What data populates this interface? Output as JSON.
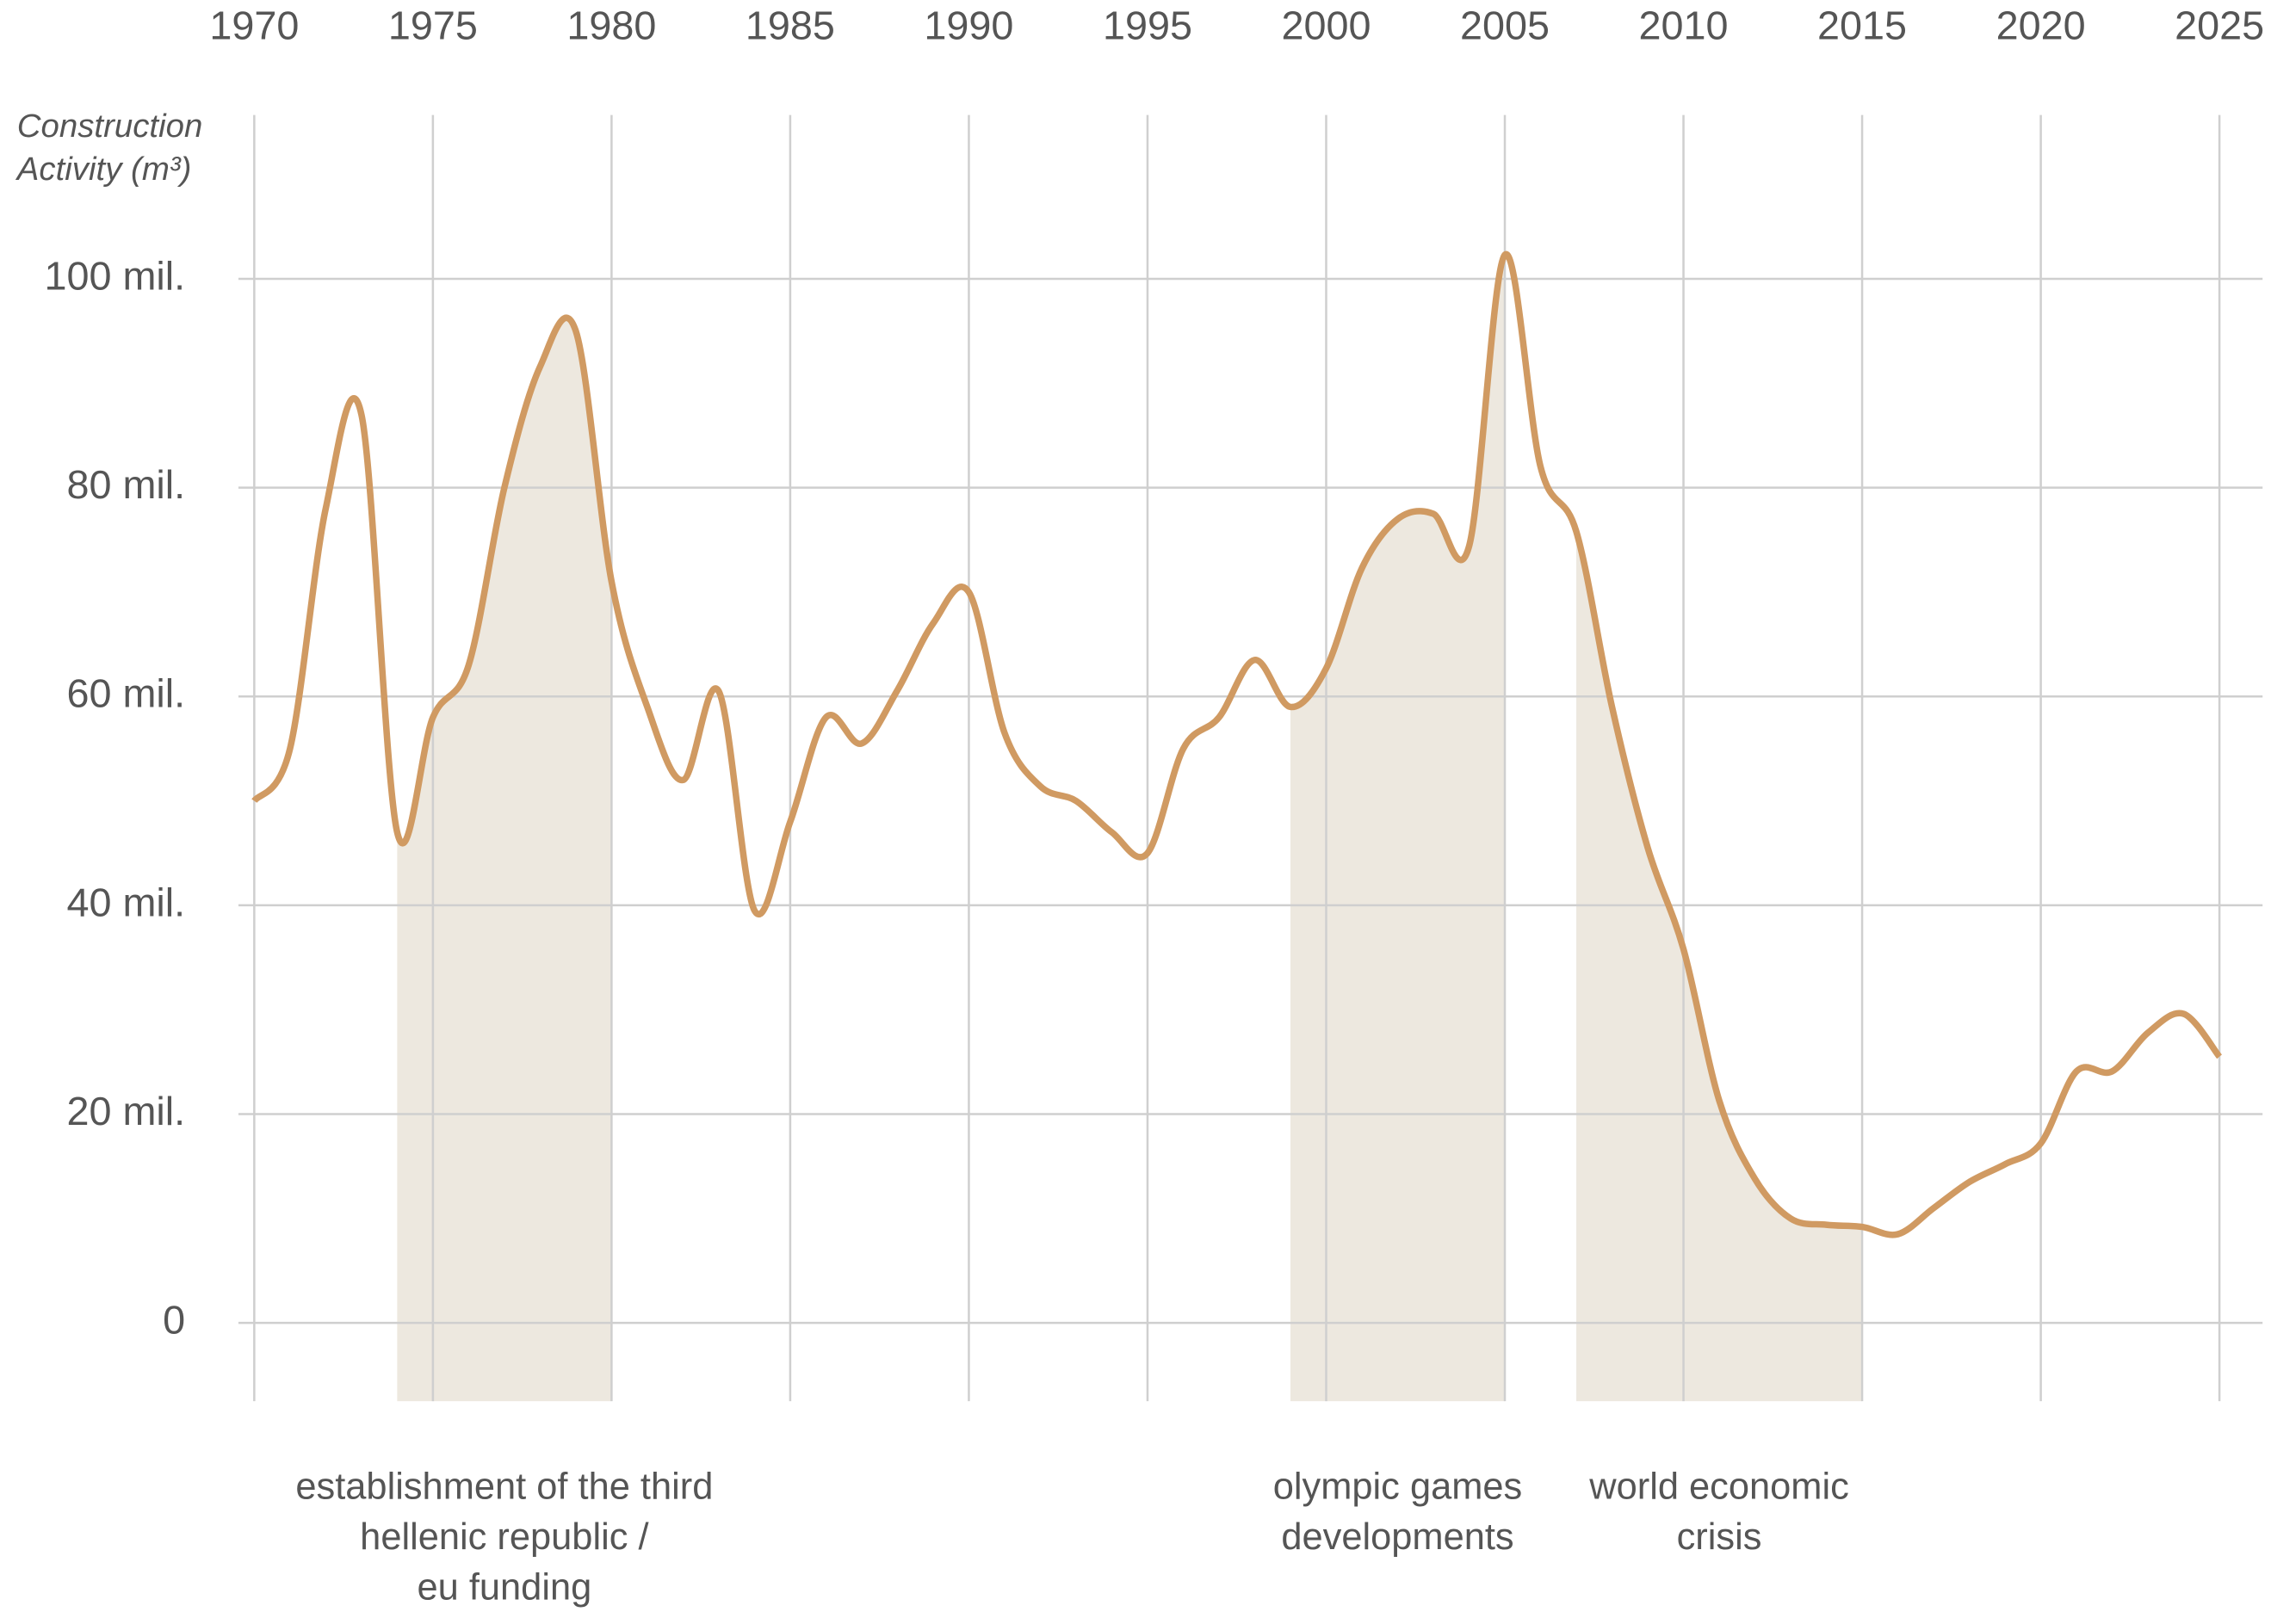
{
  "chart_data": {
    "type": "line",
    "y_axis_title": [
      "Construction",
      "Activity (m³)"
    ],
    "x": [
      1970,
      1971,
      1972,
      1973,
      1974,
      1975,
      1976,
      1977,
      1978,
      1979,
      1980,
      1981,
      1982,
      1983,
      1984,
      1985,
      1986,
      1987,
      1988,
      1989,
      1990,
      1991,
      1992,
      1993,
      1994,
      1995,
      1996,
      1997,
      1998,
      1999,
      2000,
      2001,
      2002,
      2003,
      2004,
      2005,
      2006,
      2007,
      2008,
      2009,
      2010,
      2011,
      2012,
      2013,
      2014,
      2015,
      2016,
      2017,
      2018,
      2019,
      2020,
      2021,
      2022,
      2023,
      2024,
      2025
    ],
    "series": [
      {
        "name": "Construction Activity",
        "color": "#d09a62",
        "values": [
          50,
          55,
          78,
          87,
          47,
          58,
          63,
          80,
          91.6,
          95,
          71,
          59,
          52,
          60.5,
          39.5,
          48,
          58,
          55.5,
          60.6,
          67,
          70,
          56.5,
          51.4,
          50,
          47,
          45,
          55,
          58,
          63.5,
          59,
          62.7,
          72.3,
          77,
          77.5,
          74.4,
          102.3,
          82,
          75.8,
          59,
          45.5,
          35.8,
          21.3,
          13.8,
          10,
          9.4,
          9.2,
          8.5,
          11,
          13.5,
          15.2,
          17.2,
          24.1,
          24.1,
          27.8,
          29.6,
          25.5
        ]
      }
    ],
    "xlim": [
      1970,
      2025
    ],
    "xticks": [
      1970,
      1975,
      1980,
      1985,
      1990,
      1995,
      2000,
      2005,
      2010,
      2015,
      2020,
      2025
    ],
    "ylim": [
      -7.5,
      115.7
    ],
    "yticks": [
      {
        "value": 0,
        "label": "0"
      },
      {
        "value": 20,
        "label": "20 mil."
      },
      {
        "value": 40,
        "label": "40 mil."
      },
      {
        "value": 60,
        "label": "60 mil."
      },
      {
        "value": 80,
        "label": "80 mil."
      },
      {
        "value": 100,
        "label": "100 mil."
      }
    ],
    "grid": true,
    "shade_color": "#ede8df",
    "annotations": [
      {
        "x_range": [
          1974,
          1980
        ],
        "label": [
          "establishment of the third",
          "hellenic republic /",
          "eu funding"
        ]
      },
      {
        "x_range": [
          1999,
          2005
        ],
        "label": [
          "olympic games",
          "developments"
        ]
      },
      {
        "x_range": [
          2007,
          2015
        ],
        "label": [
          "world economic",
          "crisis"
        ]
      }
    ]
  }
}
